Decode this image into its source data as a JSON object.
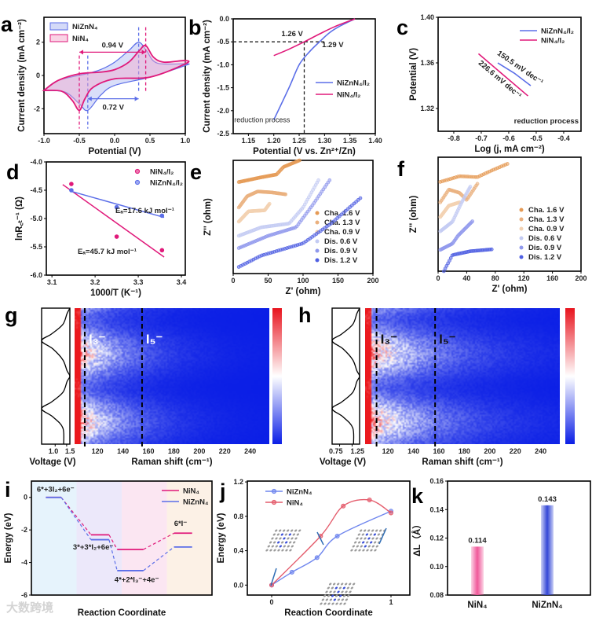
{
  "watermark": "大数跨境",
  "chart_data": [
    {
      "panel": "a",
      "type": "line",
      "xlabel": "Potential (V)",
      "ylabel": "Current density (mA cm⁻²)",
      "xlim": [
        -1.0,
        1.0
      ],
      "ylim": [
        -3.5,
        3.5
      ],
      "xticks": [
        "-1.0",
        "-0.5",
        "0.0",
        "0.5",
        "1.0"
      ],
      "yticks": [
        "-2",
        "0",
        "2"
      ],
      "series": [
        {
          "name": "NiZnN₄",
          "color": "#5b6ee8",
          "fill": "#aab5f2",
          "forward": [
            [
              -1,
              -0.9
            ],
            [
              -0.8,
              -0.3
            ],
            [
              -0.4,
              0.1
            ],
            [
              -0.2,
              0.35
            ],
            [
              0,
              0.8
            ],
            [
              0.2,
              1.5
            ],
            [
              0.34,
              2.0
            ],
            [
              0.45,
              1.5
            ],
            [
              0.6,
              0.75
            ],
            [
              1,
              0.7
            ]
          ],
          "reverse": [
            [
              1,
              0.6
            ],
            [
              0.5,
              -0.1
            ],
            [
              0,
              -0.6
            ],
            [
              -0.2,
              -1.2
            ],
            [
              -0.38,
              -2.1
            ],
            [
              -0.5,
              -1.7
            ],
            [
              -0.7,
              -1.0
            ],
            [
              -1,
              -0.9
            ]
          ],
          "peaks": [
            0.34,
            -0.38
          ]
        },
        {
          "name": "NiN₄",
          "color": "#e0197a",
          "fill": "#f4a8cb",
          "forward": [
            [
              -1,
              -0.9
            ],
            [
              -0.8,
              -0.3
            ],
            [
              -0.5,
              0.1
            ],
            [
              -0.2,
              0.2
            ],
            [
              0,
              0.35
            ],
            [
              0.2,
              0.8
            ],
            [
              0.35,
              1.5
            ],
            [
              0.44,
              1.8
            ],
            [
              0.55,
              1.1
            ],
            [
              0.7,
              0.8
            ],
            [
              1,
              0.9
            ]
          ],
          "reverse": [
            [
              1,
              0.7
            ],
            [
              0.5,
              -0.1
            ],
            [
              0,
              -0.2
            ],
            [
              -0.3,
              -0.7
            ],
            [
              -0.42,
              -1.4
            ],
            [
              -0.5,
              -2.1
            ],
            [
              -0.6,
              -1.5
            ],
            [
              -0.75,
              -0.95
            ],
            [
              -1,
              -0.9
            ]
          ],
          "peaks": [
            0.44,
            -0.5
          ]
        }
      ],
      "annotations": [
        {
          "text": "0.94 V",
          "from": -0.5,
          "to": 0.44,
          "y": 1.4,
          "color": "#e0197a"
        },
        {
          "text": "0.72 V",
          "from": -0.38,
          "to": 0.34,
          "y": -1.4,
          "color": "#5b6ee8"
        }
      ]
    },
    {
      "panel": "b",
      "type": "line",
      "xlabel": "Potential (V vs. Zn²⁺/Zn)",
      "ylabel": "Current density (mA cm⁻²)",
      "xlim": [
        1.12,
        1.4
      ],
      "ylim": [
        -2.5,
        0.0
      ],
      "xticks": [
        "1.15",
        "1.20",
        "1.25",
        "1.30",
        "1.35",
        "1.40"
      ],
      "yticks": [
        "0.0",
        "-0.5",
        "-1.0",
        "-1.5",
        "-2.0",
        "-2.5"
      ],
      "series": [
        {
          "name": "NiZnN₄/I₂",
          "color": "#5b6ee8",
          "points": [
            [
              1.2,
              -2.2
            ],
            [
              1.23,
              -1.5
            ],
            [
              1.25,
              -1.0
            ],
            [
              1.27,
              -0.72
            ],
            [
              1.29,
              -0.5
            ],
            [
              1.31,
              -0.3
            ],
            [
              1.33,
              -0.16
            ],
            [
              1.36,
              0
            ]
          ]
        },
        {
          "name": "NiN₄/I₂",
          "color": "#e0197a",
          "points": [
            [
              1.2,
              -0.8
            ],
            [
              1.23,
              -0.66
            ],
            [
              1.26,
              -0.5
            ],
            [
              1.29,
              -0.33
            ],
            [
              1.32,
              -0.17
            ],
            [
              1.36,
              0
            ]
          ]
        }
      ],
      "annotations": [
        {
          "text": "1.26 V",
          "color": "#e0197a"
        },
        {
          "text": "1.29 V",
          "color": "#5b6ee8"
        },
        {
          "text": "reduction process",
          "color": "#111111"
        }
      ],
      "reference": {
        "y": -0.5,
        "x": 1.26
      },
      "legend": "center-right"
    },
    {
      "panel": "c",
      "type": "line",
      "xlabel": "Log (j, mA cm⁻²)",
      "ylabel": "Potential (V)",
      "xlim": [
        -0.857,
        -0.337
      ],
      "ylim": [
        1.3,
        1.4
      ],
      "xticks": [
        "-0.8",
        "-0.7",
        "-0.6",
        "-0.5",
        "-0.4"
      ],
      "yticks": [
        "1.32",
        "1.36",
        "1.40"
      ],
      "series": [
        {
          "name": "NiZnN₄/I₂",
          "color": "#5b6ee8",
          "points": [
            [
              -0.64,
              1.36
            ],
            [
              -0.58,
              1.351
            ],
            [
              -0.52,
              1.34
            ]
          ],
          "slope_label": "150.5 mV dec⁻¹"
        },
        {
          "name": "NiN₄/I₂",
          "color": "#e0197a",
          "points": [
            [
              -0.71,
              1.368
            ],
            [
              -0.53,
              1.331
            ]
          ],
          "slope_label": "226.6 mV dec⁻¹"
        }
      ],
      "annotations": [
        {
          "text": "reduction process"
        }
      ],
      "legend": "top-right"
    },
    {
      "panel": "d",
      "type": "scatter",
      "xlabel": "1000/T (K⁻¹)",
      "ylabel": "lnR꜀ₜ⁻¹ (Ω)",
      "xlim": [
        3.087,
        3.409
      ],
      "ylim": [
        -6.0,
        -4.0
      ],
      "xticks": [
        "3.1",
        "3.2",
        "3.3",
        "3.4"
      ],
      "yticks": [
        "-4.0",
        "-4.5",
        "-5.0",
        "-5.5",
        "-6.0"
      ],
      "series": [
        {
          "name": "NiN₄/I₂",
          "color": "#e0197a",
          "points": [
            [
              3.145,
              -4.39
            ],
            [
              3.25,
              -5.32
            ],
            [
              3.355,
              -5.56
            ]
          ],
          "fit": [
            [
              3.125,
              -4.4
            ],
            [
              3.36,
              -5.68
            ]
          ],
          "label": "Eₐ=45.7 kJ mol⁻¹"
        },
        {
          "name": "NiZnN₄/I₂",
          "color": "#5b6ee8",
          "points": [
            [
              3.145,
              -4.5
            ],
            [
              3.25,
              -4.8
            ],
            [
              3.355,
              -4.95
            ]
          ],
          "fit": [
            [
              3.145,
              -4.52
            ],
            [
              3.36,
              -4.98
            ]
          ],
          "label": "Eₐ=17.6 kJ mol⁻¹"
        }
      ],
      "legend": "top-right"
    },
    {
      "panel": "e",
      "type": "scatter",
      "xlabel": "Z' (ohm)",
      "ylabel": "Z'' (ohm)",
      "xlim": [
        0,
        200
      ],
      "ylim": [
        0,
        12
      ],
      "xticks": [
        "0",
        "50",
        "100",
        "150",
        "200"
      ],
      "yticks": [],
      "series": [
        {
          "name": "Cha. 1.6 V",
          "color": "#e59a55",
          "points": [
            [
              8,
              9.7
            ],
            [
              40,
              10.2
            ],
            [
              62,
              10.5
            ],
            [
              72,
              11.3
            ],
            [
              95,
              12
            ]
          ]
        },
        {
          "name": "Cha. 1.3 V",
          "color": "#eab07e",
          "points": [
            [
              8,
              7.0
            ],
            [
              20,
              8.2
            ],
            [
              35,
              8.7
            ],
            [
              55,
              8.6
            ],
            [
              75,
              8.4
            ]
          ]
        },
        {
          "name": "Cha. 0.9 V",
          "color": "#f3d2b2",
          "points": [
            [
              8,
              5.5
            ],
            [
              22,
              6.6
            ],
            [
              45,
              6.7
            ],
            [
              52,
              7.4
            ]
          ]
        },
        {
          "name": "Dis. 0.6 V",
          "color": "#c3cbf3",
          "points": [
            [
              8,
              4.0
            ],
            [
              40,
              4.9
            ],
            [
              80,
              5.3
            ],
            [
              100,
              7.0
            ],
            [
              122,
              9.9
            ]
          ]
        },
        {
          "name": "Dis. 0.9 V",
          "color": "#8f98ec",
          "points": [
            [
              8,
              2.7
            ],
            [
              50,
              4.0
            ],
            [
              90,
              4.9
            ],
            [
              115,
              7.4
            ],
            [
              138,
              9.9
            ]
          ]
        },
        {
          "name": "Dis. 1.2 V",
          "color": "#4f5fe2",
          "points": [
            [
              8,
              0.7
            ],
            [
              40,
              1.9
            ],
            [
              100,
              3.2
            ],
            [
              140,
              5.3
            ],
            [
              182,
              8.0
            ]
          ]
        }
      ],
      "legend": "right"
    },
    {
      "panel": "f",
      "type": "scatter",
      "xlabel": "Z' (ohm)",
      "ylabel": "Z'' (ohm)",
      "xlim": [
        0,
        200
      ],
      "ylim": [
        0,
        12
      ],
      "xticks": [
        "0",
        "40",
        "80",
        "120",
        "160",
        "200"
      ],
      "yticks": [],
      "series": [
        {
          "name": "Cha. 1.6 V",
          "color": "#e59a55",
          "points": [
            [
              3,
              9.4
            ],
            [
              30,
              10.0
            ],
            [
              55,
              9.9
            ],
            [
              75,
              10.6
            ],
            [
              97,
              11.3
            ]
          ]
        },
        {
          "name": "Cha. 1.3 V",
          "color": "#eab07e",
          "points": [
            [
              3,
              7.25
            ],
            [
              15,
              8.6
            ],
            [
              30,
              8.25
            ],
            [
              40,
              7.5
            ],
            [
              55,
              9.2
            ]
          ]
        },
        {
          "name": "Cha. 0.9 V",
          "color": "#f3d2b2",
          "points": [
            [
              3,
              5.7
            ],
            [
              15,
              6.9
            ],
            [
              30,
              7.25
            ]
          ]
        },
        {
          "name": "Dis. 0.6 V",
          "color": "#c3cbf3",
          "points": [
            [
              3,
              4.2
            ],
            [
              20,
              5.2
            ],
            [
              32,
              7.1
            ],
            [
              45,
              8.9
            ]
          ]
        },
        {
          "name": "Dis. 0.9 V",
          "color": "#8f98ec",
          "points": [
            [
              3,
              2.25
            ],
            [
              20,
              2.9
            ],
            [
              28,
              3.75
            ],
            [
              48,
              5.25
            ]
          ]
        },
        {
          "name": "Dis. 1.2 V",
          "color": "#4f5fe2",
          "points": [
            [
              8,
              0
            ],
            [
              20,
              1.7
            ],
            [
              45,
              2.1
            ],
            [
              75,
              2.3
            ]
          ]
        }
      ],
      "legend": "right"
    },
    {
      "panel": "g",
      "type": "heatmap",
      "xlabel": "Raman shift (cm⁻¹)",
      "voltage_label": "Voltage (V)",
      "xlim": [
        102,
        255
      ],
      "xticks": [
        "120",
        "140",
        "160",
        "180",
        "200",
        "220",
        "240"
      ],
      "voltage_ticks": [
        "1.0",
        "1.5"
      ],
      "voltage_lim": [
        0.41,
        1.64
      ],
      "peaks": [
        {
          "label": "I₃⁻",
          "x": 110
        },
        {
          "label": "I₅⁻",
          "x": 155
        }
      ],
      "peak_label_color": "#ffffff",
      "colormap": [
        "#0a1ee6",
        "#ffffff",
        "#e8141e"
      ]
    },
    {
      "panel": "h",
      "type": "heatmap",
      "xlabel": "Raman shift (cm⁻¹)",
      "voltage_label": "Voltage (V)",
      "xlim": [
        102,
        255
      ],
      "xticks": [
        "120",
        "140",
        "160",
        "180",
        "200",
        "220",
        "240"
      ],
      "voltage_ticks": [
        "0.75",
        "1.25"
      ],
      "voltage_lim": [
        0.45,
        1.55
      ],
      "peaks": [
        {
          "label": "I₃⁻",
          "x": 111
        },
        {
          "label": "I₅⁻",
          "x": 157
        }
      ],
      "peak_label_color": "#111111",
      "colormap": [
        "#0a1ee6",
        "#ffffff",
        "#e8141e"
      ]
    },
    {
      "panel": "i",
      "type": "line",
      "xlabel": "Reaction Coordinate",
      "ylabel": "Energy (eV)",
      "xlim": [
        0,
        10
      ],
      "ylim": [
        -6,
        1
      ],
      "yticks": [
        "0",
        "-2",
        "-4",
        "-6"
      ],
      "states": [
        "6*+3I₂+6e⁻",
        "3*+3*I₂+6e⁻",
        "4*+2*I₃⁻+4e⁻",
        "6*I⁻"
      ],
      "series": [
        {
          "name": "NiN₄",
          "color": "#e0197a",
          "levels": [
            0,
            -2.3,
            -3.2,
            -2.2
          ]
        },
        {
          "name": "NiZnN₄",
          "color": "#5b6ee8",
          "levels": [
            0,
            -2.6,
            -4.5,
            -3.05
          ]
        }
      ],
      "bands": [
        "#e6f3fc",
        "#ece8fa",
        "#fbe6f2",
        "#fcf1e6"
      ],
      "legend": "top-right"
    },
    {
      "panel": "j",
      "type": "line",
      "xlabel": "Reaction Coordinate",
      "ylabel": "Energy (eV)",
      "xlim": [
        -0.204,
        1.158
      ],
      "ylim": [
        -0.116,
        1.21
      ],
      "xticks": [
        "0",
        "1"
      ],
      "yticks": [
        "0.0",
        "0.4",
        "0.8",
        "1.2"
      ],
      "series": [
        {
          "name": "NiZnN₄",
          "color": "#6f86ee",
          "points": [
            [
              0,
              0
            ],
            [
              0.17,
              0.15
            ],
            [
              0.38,
              0.32
            ],
            [
              0.55,
              0.57
            ],
            [
              1.0,
              0.86
            ]
          ]
        },
        {
          "name": "NiN₄",
          "color": "#e45c6c",
          "points": [
            [
              0,
              0
            ],
            [
              0.41,
              0.57
            ],
            [
              0.6,
              0.92
            ],
            [
              0.82,
              0.99
            ],
            [
              1.0,
              0.84
            ]
          ]
        }
      ],
      "legend": "top-left"
    },
    {
      "panel": "k",
      "type": "bar",
      "xlabel": "",
      "ylabel": "ΔL（Å）",
      "ylim": [
        0.08,
        0.16
      ],
      "yticks": [
        "0.08",
        "0.10",
        "0.12",
        "0.14",
        "0.16"
      ],
      "categories": [
        "NiN₄",
        "NiZnN₄"
      ],
      "values": [
        0.114,
        0.143
      ],
      "value_labels": [
        "0.114",
        "0.143"
      ],
      "colors": [
        "#f0589a",
        "#3346d6"
      ]
    }
  ]
}
